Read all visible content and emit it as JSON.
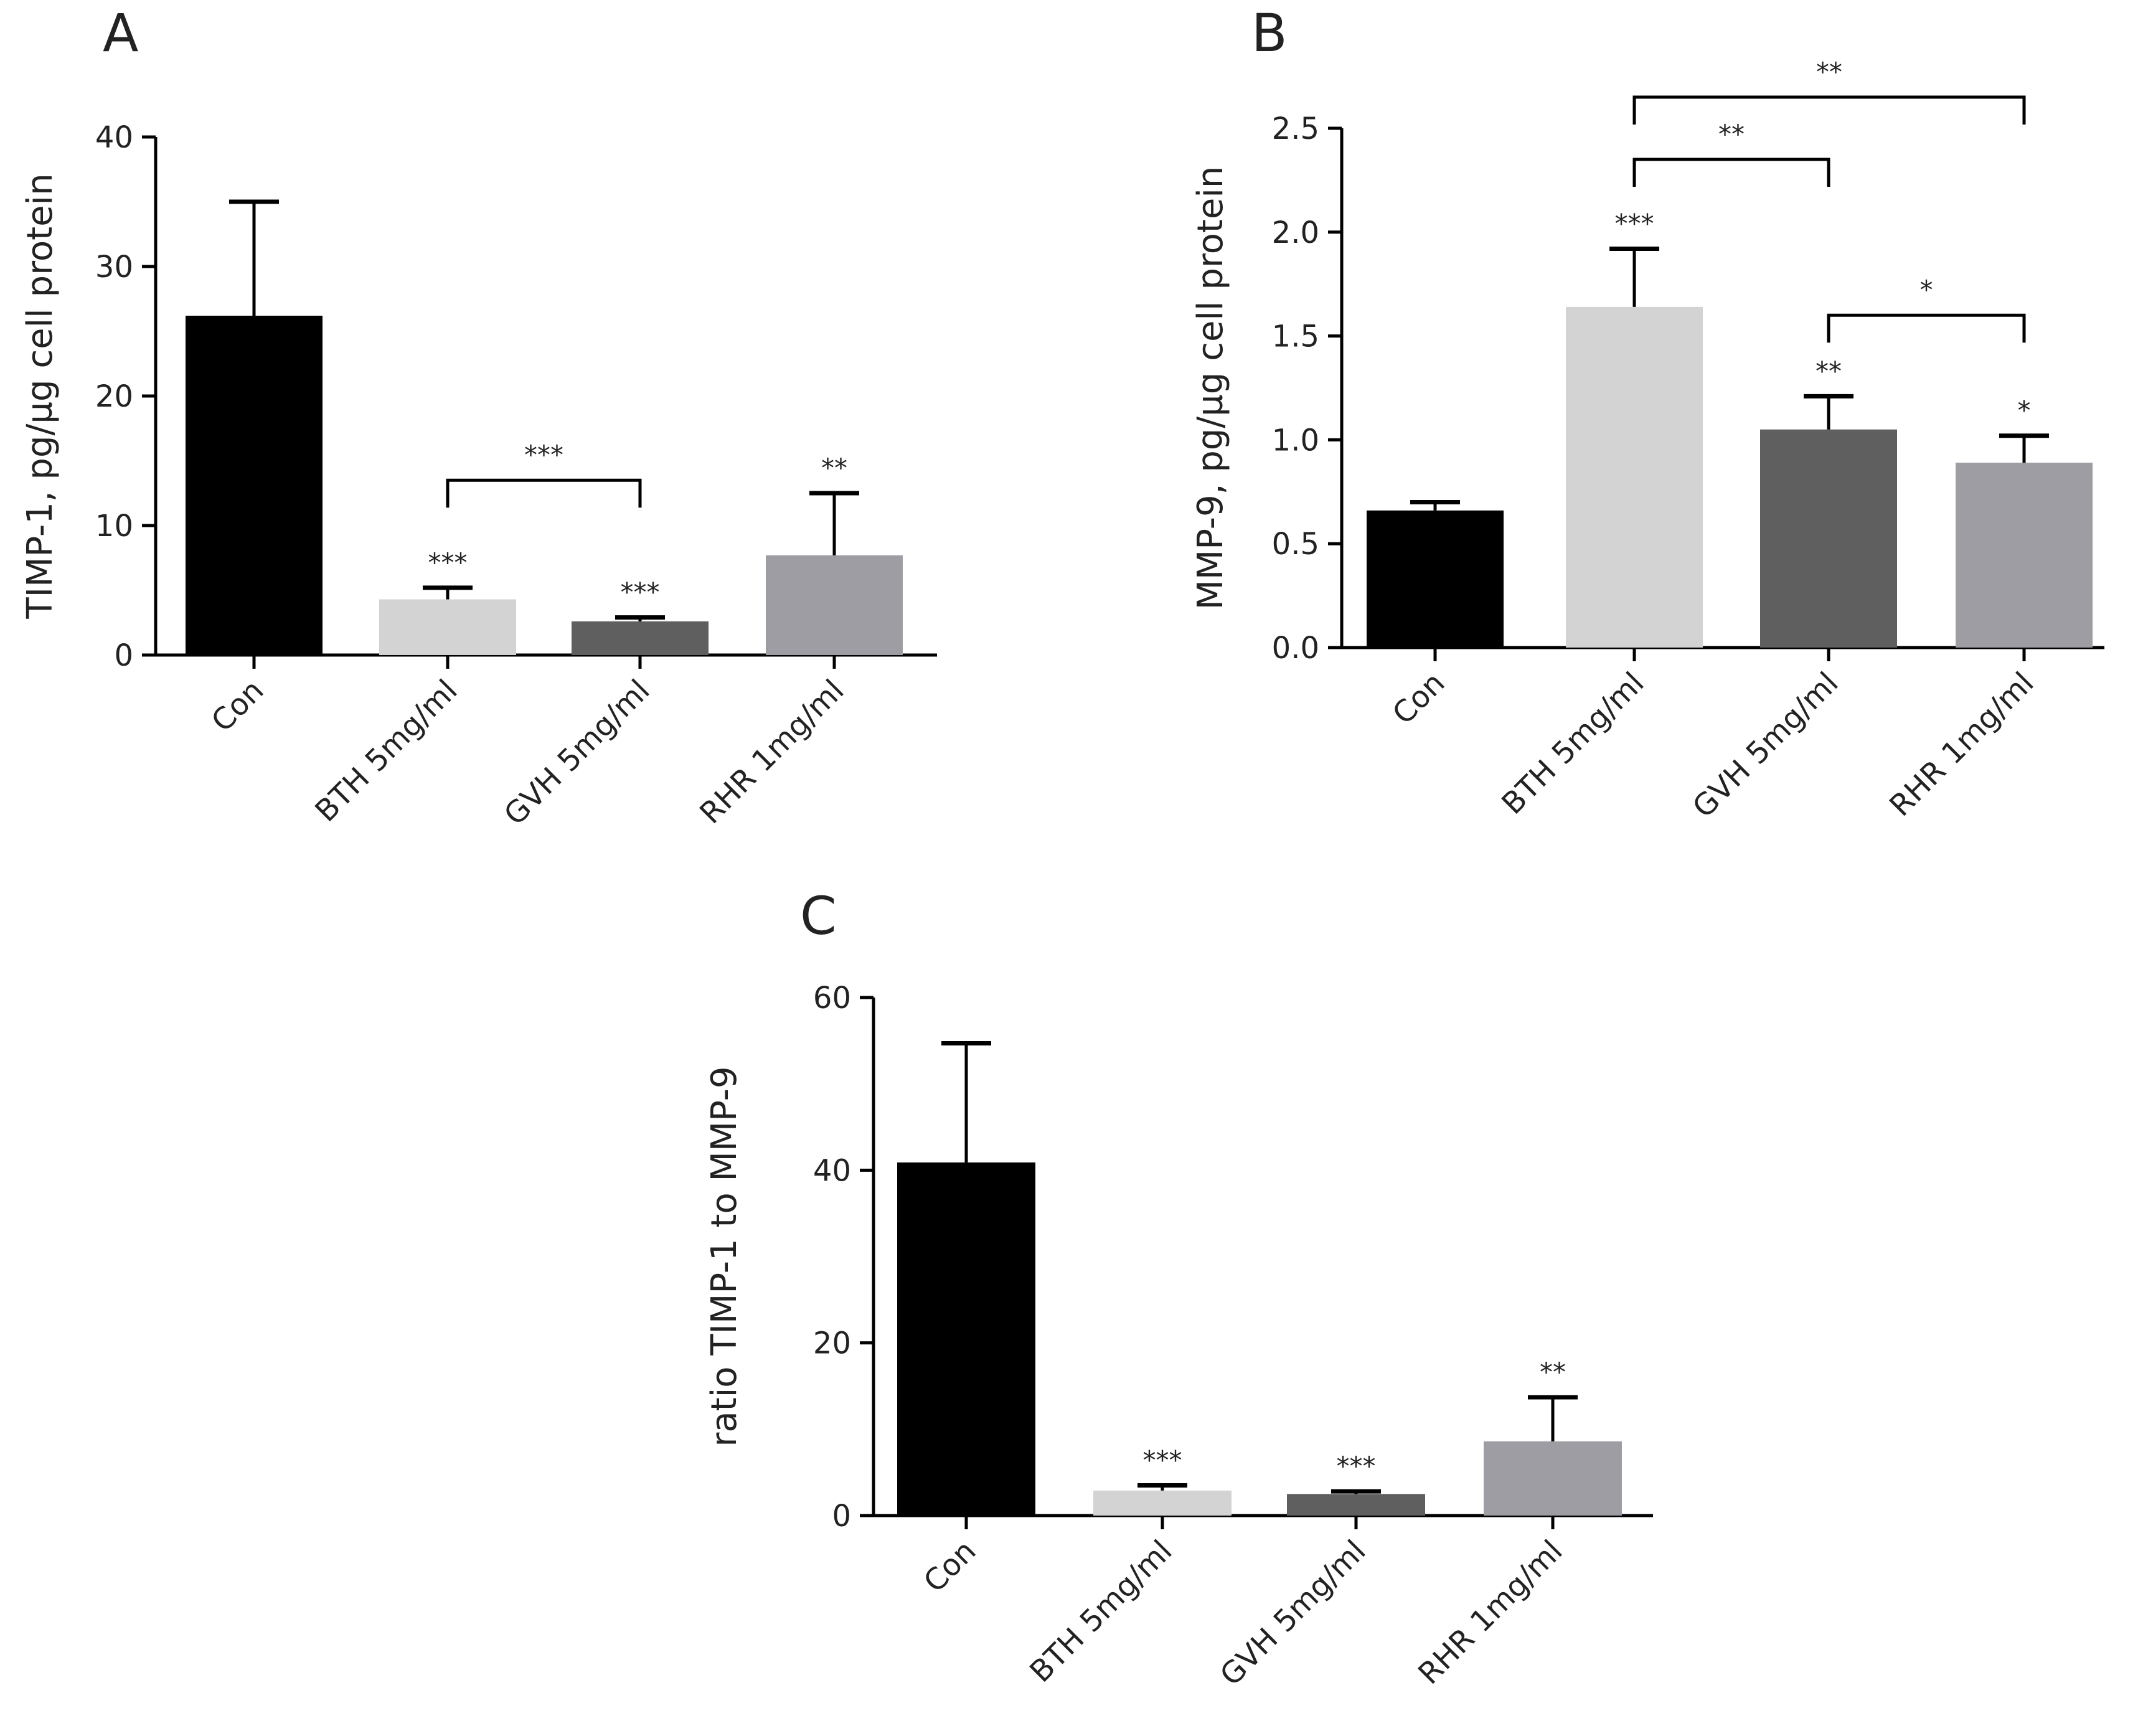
{
  "figure": {
    "colors": {
      "Con": "#000000",
      "BTH 5mg/ml": "#d3d3d3",
      "GVH 5mg/ml": "#5f5f5f",
      "RHR 1mg/ml": "#9d9da3",
      "axis": "#000000"
    }
  },
  "chart_data": [
    {
      "panel": "A",
      "type": "bar",
      "categories": [
        "Con",
        "BTH 5mg/ml",
        "GVH 5mg/ml",
        "RHR 1mg/ml"
      ],
      "values": [
        26.2,
        4.3,
        2.6,
        7.7
      ],
      "errors": [
        8.8,
        0.9,
        0.3,
        4.8
      ],
      "ylabel": "TIMP-1, pg/µg cell protein",
      "ylim": [
        0,
        40
      ],
      "yticks": [
        "0",
        "10",
        "20",
        "30",
        "40"
      ],
      "significance": [
        "",
        "***",
        "***",
        "**"
      ],
      "comparisons": [
        {
          "from": 1,
          "to": 2,
          "label": "***",
          "level": 13.5
        }
      ]
    },
    {
      "panel": "B",
      "type": "bar",
      "categories": [
        "Con",
        "BTH 5mg/ml",
        "GVH 5mg/ml",
        "RHR 1mg/ml"
      ],
      "values": [
        0.66,
        1.64,
        1.05,
        0.89
      ],
      "errors": [
        0.04,
        0.28,
        0.16,
        0.13
      ],
      "ylabel": "MMP-9, pg/µg cell protein",
      "ylim": [
        0,
        2.5
      ],
      "yticks": [
        "0.0",
        "0.5",
        "1.0",
        "1.5",
        "2.0",
        "2.5"
      ],
      "significance": [
        "",
        "***",
        "**",
        "*"
      ],
      "comparisons": [
        {
          "from": 1,
          "to": 3,
          "label": "**",
          "level": 2.65
        },
        {
          "from": 1,
          "to": 2,
          "label": "**",
          "level": 2.35
        },
        {
          "from": 2,
          "to": 3,
          "label": "*",
          "level": 1.6
        }
      ]
    },
    {
      "panel": "C",
      "type": "bar",
      "categories": [
        "Con",
        "BTH 5mg/ml",
        "GVH 5mg/ml",
        "RHR 1mg/ml"
      ],
      "values": [
        40.9,
        2.9,
        2.5,
        8.6
      ],
      "errors": [
        13.8,
        0.6,
        0.3,
        5.1
      ],
      "ylabel": "ratio TIMP-1 to MMP-9",
      "ylim": [
        0,
        60
      ],
      "yticks": [
        "0",
        "20",
        "40",
        "60"
      ],
      "significance": [
        "",
        "***",
        "***",
        "**"
      ],
      "comparisons": []
    }
  ]
}
